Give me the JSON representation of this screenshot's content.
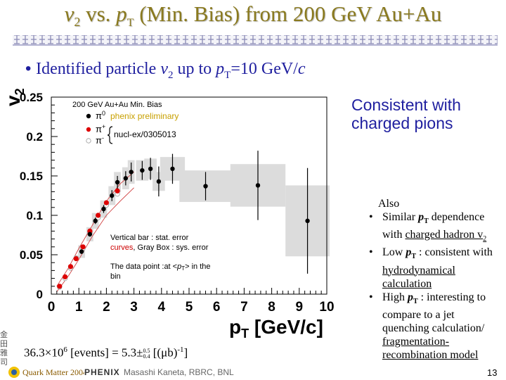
{
  "slide": {
    "title_v2": "v",
    "title_sub2": "2",
    "title_vs": " vs. ",
    "title_p": "p",
    "title_subT": "T",
    "title_rest": " (Min. Bias) from 200 GeV Au+Au",
    "bullet_text": "Identified particle",
    "bullet_v": "v",
    "bullet_sub": "2",
    "bullet_mid": " up to ",
    "bullet_p": "p",
    "bullet_subT": "T",
    "bullet_end": "=10 GeV/",
    "bullet_c": "c",
    "consistent_line1": "Consistent with",
    "consistent_line2": "charged pions",
    "also_head": "Also",
    "bullets": [
      {
        "pre": "Similar ",
        "p": "p",
        "sub": "T",
        "post": " dependence with ",
        "link": "charged hadron v",
        "link_sub": "2"
      },
      {
        "pre": "Low ",
        "p": "p",
        "sub": "T",
        "post": " : consistent with ",
        "link": "hydrodynamical calculation",
        "link_sub": ""
      },
      {
        "pre": "High ",
        "p": "p",
        "sub": "T",
        "post": " : interesting to compare to a jet quenching calculation/ ",
        "link": "fragmentation-recombination model",
        "link_sub": ""
      }
    ],
    "events_text": "36.3×10",
    "events_exp": "6",
    "events_mid": " [events] = 5.3±",
    "events_up": "0.5",
    "events_dn": "0.4",
    "events_end": " [(μb)",
    "events_exp2": "-1",
    "events_close": "]",
    "author": "Masashi Kaneta, RBRC, BNL",
    "page": "13",
    "conference": "Quark Matter 2004",
    "experiment": "PHENIX",
    "side_stamp": "金田雅司"
  },
  "chart_data": {
    "type": "scatter",
    "ylabel": "v",
    "ylabel_sub": "2",
    "xlabel": "p",
    "xlabel_sub": "T",
    "xlabel_unit": " [GeV/c]",
    "xlim": [
      0,
      10
    ],
    "ylim": [
      0,
      0.25
    ],
    "xticks": [
      "0",
      "1",
      "2",
      "3",
      "4",
      "5",
      "6",
      "7",
      "8",
      "9",
      "10"
    ],
    "yticks": [
      "0",
      "0.05",
      "0.1",
      "0.15",
      "0.2",
      "0.25"
    ],
    "legend_title": "200 GeV Au+Au Min. Bias",
    "legend_pi0": "π",
    "legend_pi0_sup": "0",
    "legend_pi0_note": "phenix preliminary",
    "legend_pip": "π",
    "legend_pip_sup": "+",
    "legend_pim": "π",
    "legend_pim_sup": "-",
    "legend_nucl": "nucl-ex/0305013",
    "note1": "Vertical bar : stat. error",
    "note2_a": "curves",
    "note2_b": ", Gray Box : sys. error",
    "note3_a": "The data point :at <",
    "note3_p": "p",
    "note3_sub": "T",
    "note3_b": "> in the",
    "note3_c": "bin",
    "series": [
      {
        "name": "π0",
        "color": "#000000",
        "points": [
          {
            "x": 1.1,
            "y": 0.054,
            "err": 0.003,
            "sys": 0.008,
            "bw": 0.25
          },
          {
            "x": 1.4,
            "y": 0.076,
            "err": 0.003,
            "sys": 0.009,
            "bw": 0.25
          },
          {
            "x": 1.6,
            "y": 0.093,
            "err": 0.004,
            "sys": 0.01,
            "bw": 0.25
          },
          {
            "x": 1.9,
            "y": 0.108,
            "err": 0.005,
            "sys": 0.011,
            "bw": 0.25
          },
          {
            "x": 2.2,
            "y": 0.125,
            "err": 0.007,
            "sys": 0.012,
            "bw": 0.25
          },
          {
            "x": 2.4,
            "y": 0.142,
            "err": 0.008,
            "sys": 0.013,
            "bw": 0.25
          },
          {
            "x": 2.7,
            "y": 0.147,
            "err": 0.009,
            "sys": 0.014,
            "bw": 0.25
          },
          {
            "x": 2.9,
            "y": 0.155,
            "err": 0.012,
            "sys": 0.015,
            "bw": 0.25
          },
          {
            "x": 3.3,
            "y": 0.157,
            "err": 0.012,
            "sys": 0.013,
            "bw": 0.45
          },
          {
            "x": 3.6,
            "y": 0.159,
            "err": 0.014,
            "sys": 0.013,
            "bw": 0.45
          },
          {
            "x": 3.9,
            "y": 0.143,
            "err": 0.019,
            "sys": 0.012,
            "bw": 0.45
          },
          {
            "x": 4.4,
            "y": 0.159,
            "err": 0.019,
            "sys": 0.015,
            "bw": 0.9
          },
          {
            "x": 5.6,
            "y": 0.137,
            "err": 0.018,
            "sys": 0.02,
            "bw": 1.9
          },
          {
            "x": 7.5,
            "y": 0.138,
            "err": 0.044,
            "sys": 0.027,
            "bw": 2.0
          },
          {
            "x": 9.3,
            "y": 0.093,
            "err": 0.067,
            "sys": 0.045,
            "bw": 1.6
          }
        ]
      },
      {
        "name": "π+",
        "color": "#dd0000",
        "points": [
          {
            "x": 0.3,
            "y": 0.01
          },
          {
            "x": 0.5,
            "y": 0.022
          },
          {
            "x": 0.7,
            "y": 0.035
          },
          {
            "x": 0.9,
            "y": 0.045
          },
          {
            "x": 1.15,
            "y": 0.06
          },
          {
            "x": 1.4,
            "y": 0.08
          },
          {
            "x": 1.7,
            "y": 0.1
          },
          {
            "x": 2.0,
            "y": 0.116
          },
          {
            "x": 2.4,
            "y": 0.131
          }
        ]
      },
      {
        "name": "π-",
        "color": "#cccccc",
        "points": [
          {
            "x": 0.3,
            "y": 0.009
          },
          {
            "x": 0.5,
            "y": 0.02
          },
          {
            "x": 0.7,
            "y": 0.033
          },
          {
            "x": 0.9,
            "y": 0.046
          },
          {
            "x": 1.15,
            "y": 0.058
          },
          {
            "x": 1.4,
            "y": 0.078
          },
          {
            "x": 1.7,
            "y": 0.097
          },
          {
            "x": 2.0,
            "y": 0.113
          },
          {
            "x": 2.4,
            "y": 0.127
          }
        ]
      }
    ],
    "curves": {
      "color": "#cc3333",
      "upper": [
        [
          0.2,
          0.01
        ],
        [
          0.6,
          0.032
        ],
        [
          1.0,
          0.058
        ],
        [
          1.5,
          0.088
        ],
        [
          2.0,
          0.118
        ],
        [
          2.5,
          0.14
        ],
        [
          3.0,
          0.155
        ]
      ],
      "lower": [
        [
          0.2,
          0.003
        ],
        [
          0.6,
          0.022
        ],
        [
          1.0,
          0.044
        ],
        [
          1.5,
          0.074
        ],
        [
          2.0,
          0.1
        ],
        [
          2.5,
          0.118
        ],
        [
          3.0,
          0.135
        ]
      ]
    }
  }
}
